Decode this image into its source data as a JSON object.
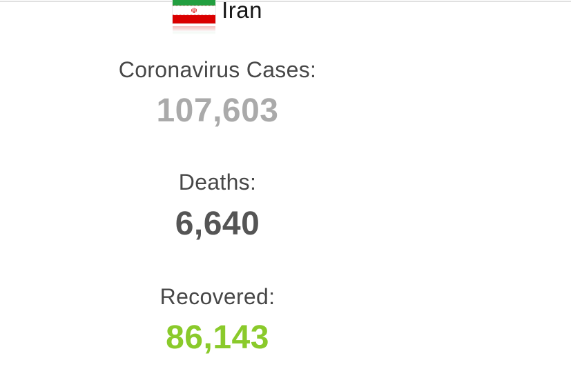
{
  "page": {
    "country": "Iran",
    "flag": {
      "name": "flag-of-iran",
      "emblem_glyph": "☫",
      "green": "#239f40",
      "white": "#ffffff",
      "red": "#da0000"
    }
  },
  "counters": [
    {
      "id": "cases",
      "label": "Coronavirus Cases:",
      "value": "107,603",
      "value_color": "#aaaaaa"
    },
    {
      "id": "deaths",
      "label": "Deaths:",
      "value": "6,640",
      "value_color": "#555555"
    },
    {
      "id": "recovered",
      "label": "Recovered:",
      "value": "86,143",
      "value_color": "#8aca2b"
    }
  ],
  "colors": {
    "label_text": "#474747",
    "title_text": "#151515",
    "top_divider": "#e0e0e0"
  }
}
